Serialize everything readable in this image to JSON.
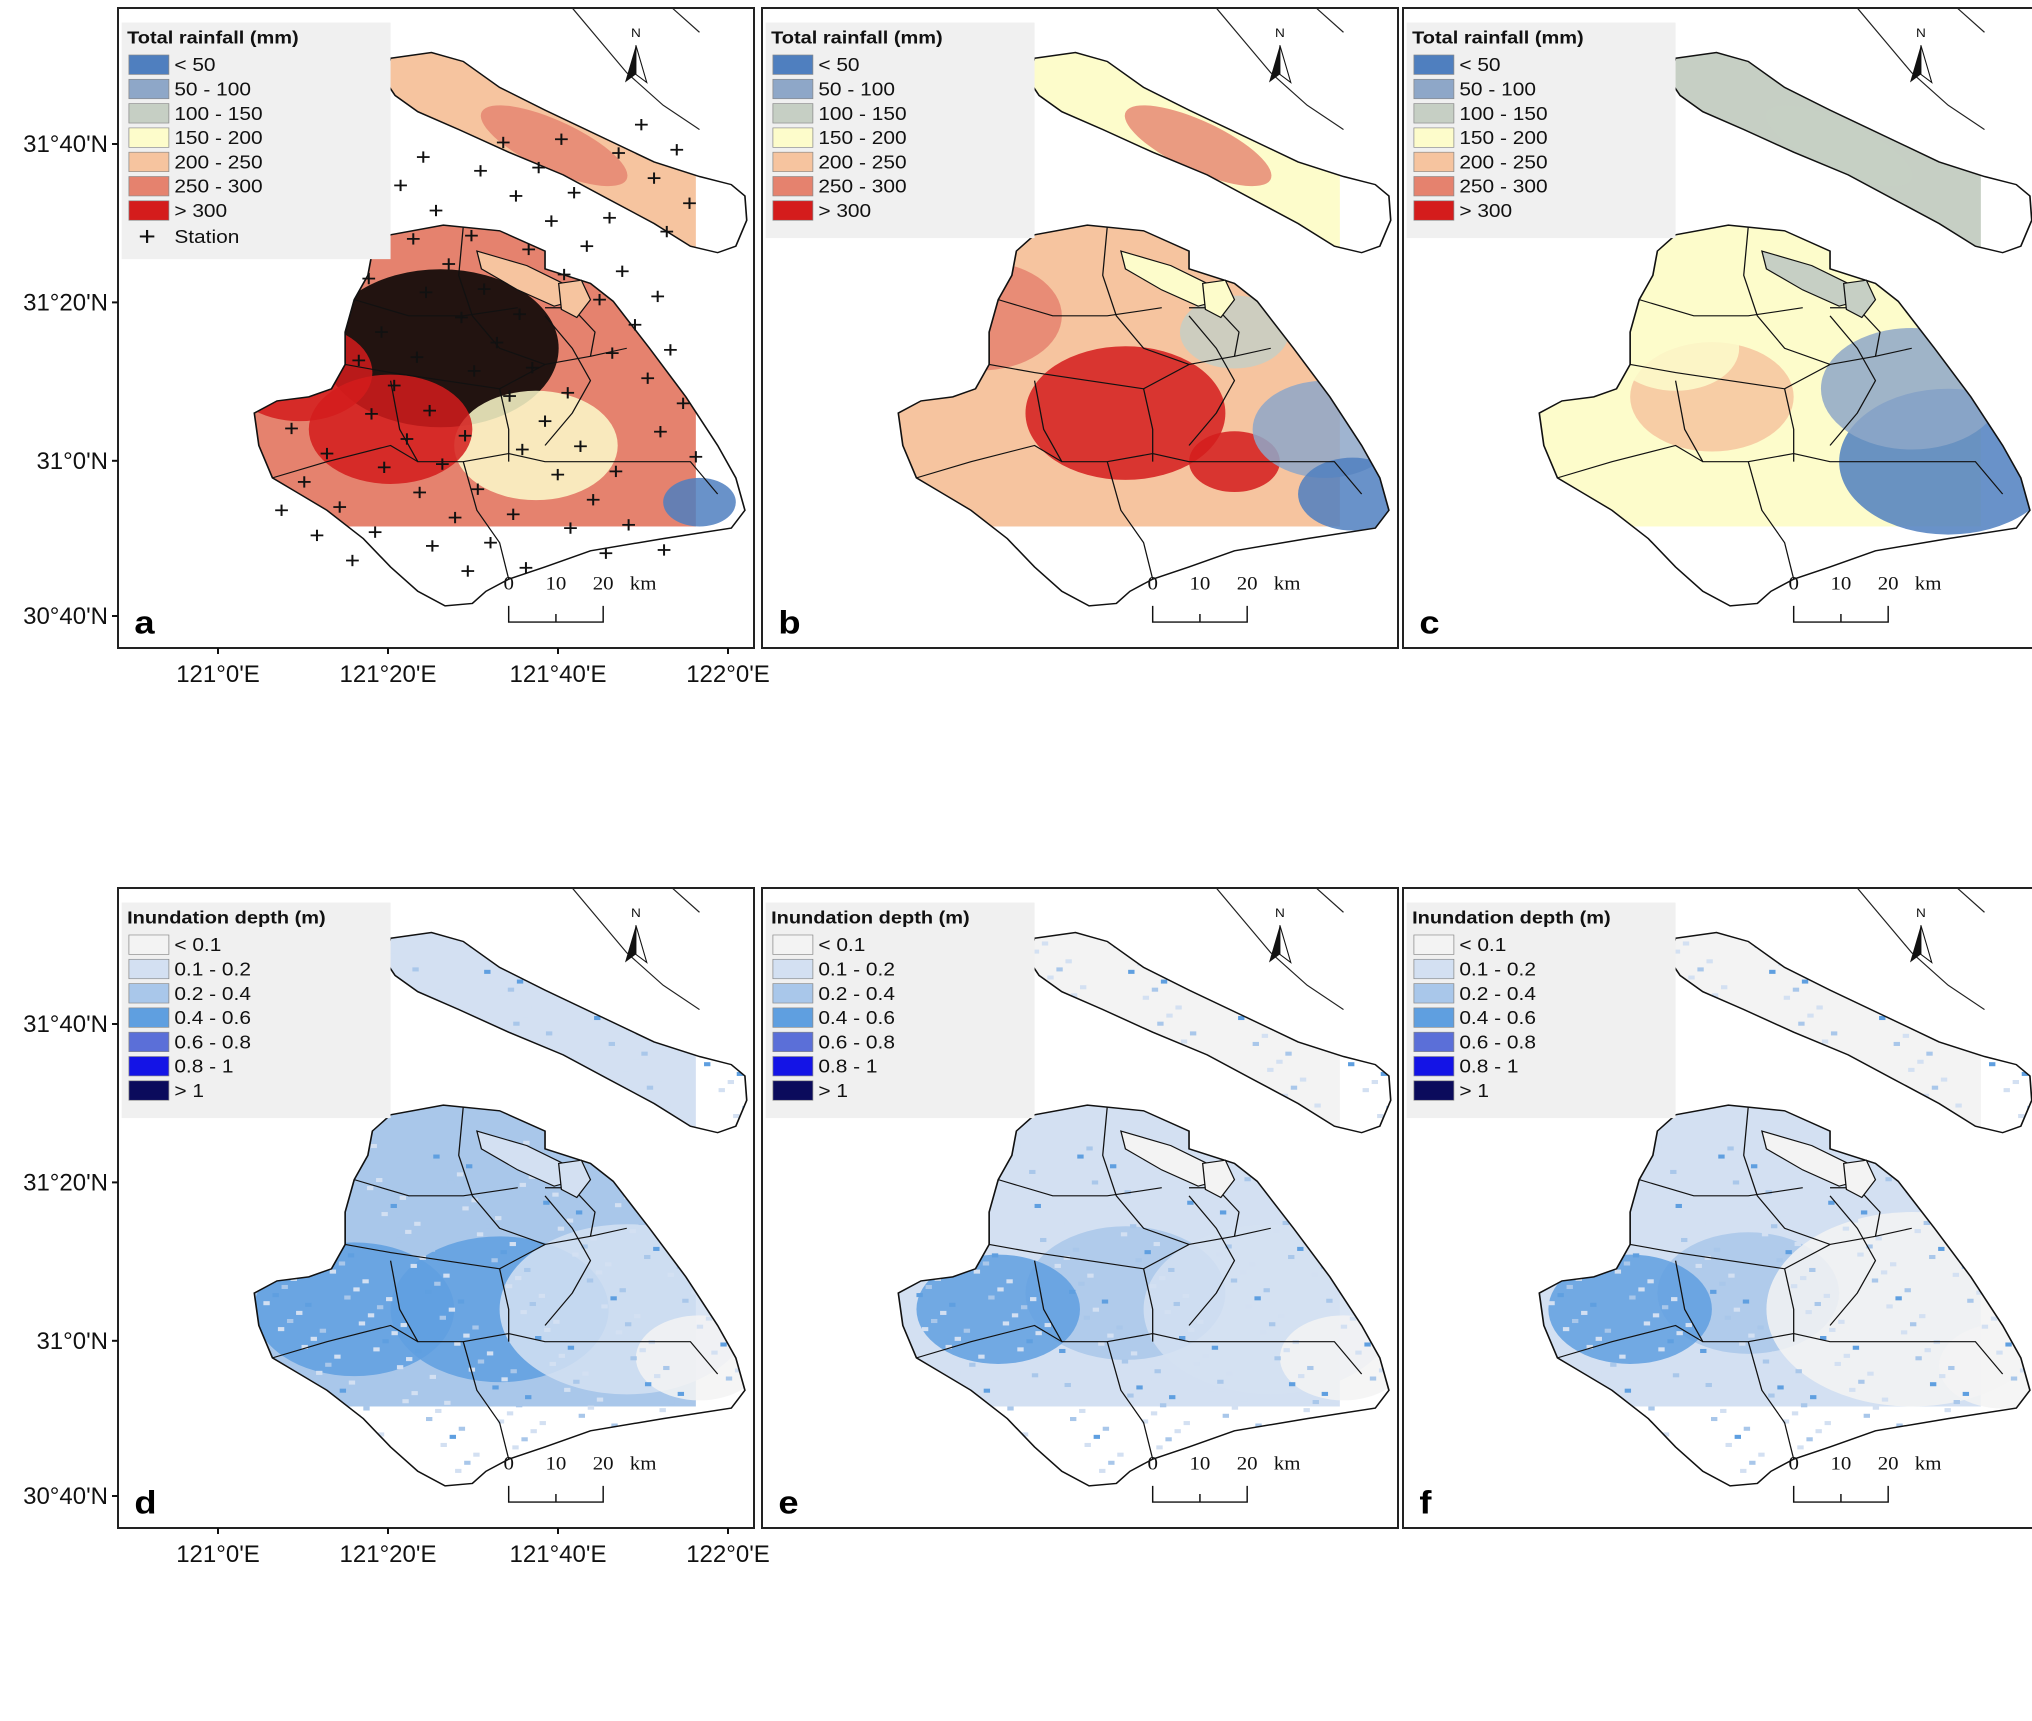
{
  "colors": {
    "rain": [
      "#4f7fbf",
      "#8ea7c8",
      "#c6cfc4",
      "#fdfccb",
      "#f6c49f",
      "#e5826e",
      "#d41c1c"
    ],
    "depth": [
      "#f3f3f3",
      "#d3e0f2",
      "#a9c7ea",
      "#5f9fe0",
      "#5b6fd8",
      "#1414e6",
      "#0b0b5c"
    ],
    "outline": "#111111",
    "station": "#111111"
  },
  "axes": {
    "lat_labels": [
      "31°40'N",
      "31°20'N",
      "31°0'N",
      "30°40'N"
    ],
    "lon_labels": [
      "121°0'E",
      "121°20'E",
      "121°40'E",
      "122°0'E"
    ]
  },
  "legends": {
    "rainfall": {
      "title": "Total rainfall (mm)",
      "classes": [
        "< 50",
        "50 - 100",
        "100 - 150",
        "150 - 200",
        "200 - 250",
        "250 - 300",
        "> 300"
      ],
      "station_label": "Station"
    },
    "depth": {
      "title": "Inundation depth (m)",
      "classes": [
        "< 0.1",
        "0.1 - 0.2",
        "0.2 - 0.4",
        "0.4 - 0.6",
        "0.6 - 0.8",
        "0.8 - 1",
        "> 1"
      ]
    }
  },
  "scale_bar": {
    "labels": [
      "0",
      "10",
      "20"
    ],
    "unit": "km"
  },
  "north_label": "N",
  "panels": [
    {
      "letter": "a",
      "kind": "rain",
      "stations": true,
      "dominant": 5
    },
    {
      "letter": "b",
      "kind": "rain",
      "stations": false,
      "dominant": 4
    },
    {
      "letter": "c",
      "kind": "rain",
      "stations": false,
      "dominant": 3
    },
    {
      "letter": "d",
      "kind": "depth",
      "dominant": 2
    },
    {
      "letter": "e",
      "kind": "depth",
      "dominant": 1
    },
    {
      "letter": "f",
      "kind": "depth",
      "dominant": 1
    }
  ]
}
